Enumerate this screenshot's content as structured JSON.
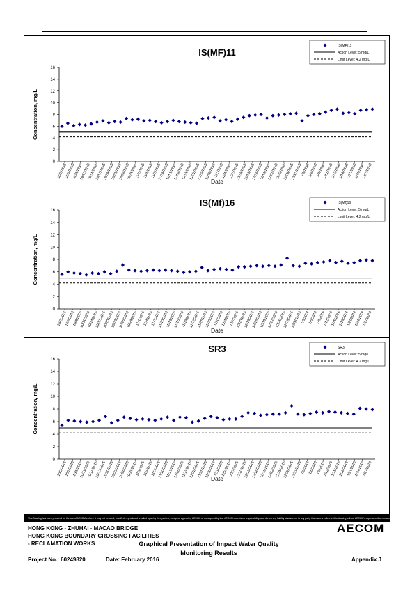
{
  "chart_data": [
    {
      "type": "scatter",
      "title": "IS(MF)11",
      "xlabel": "Date",
      "ylabel": "Concentration, mg/L",
      "ylim": [
        0,
        16
      ],
      "yticks": [
        0,
        2,
        4,
        6,
        8,
        10,
        12,
        14,
        16
      ],
      "xtick_labels": [
        "10/2/2015",
        "10/5/2015",
        "10/8/2015",
        "10/11/2015",
        "10/14/2015",
        "10/17/2015",
        "10/20/2015",
        "10/23/2015",
        "10/26/2015",
        "10/29/2015",
        "11/1/2015",
        "11/4/2015",
        "11/7/2015",
        "11/10/2015",
        "11/13/2015",
        "11/16/2015",
        "11/19/2015",
        "11/22/2015",
        "11/25/2015",
        "11/28/2015",
        "12/1/2015",
        "12/4/2015",
        "12/7/2015",
        "12/10/2015",
        "12/13/2015",
        "12/16/2015",
        "12/19/2015",
        "12/22/2015",
        "12/25/2015",
        "12/28/2015",
        "12/31/2015",
        "1/3/2016",
        "1/6/2016",
        "1/9/2016",
        "1/12/2016",
        "1/15/2016",
        "1/18/2016",
        "1/21/2016",
        "1/24/2016",
        "1/27/2016"
      ],
      "legend": [
        {
          "label": "IS(MF)11",
          "kind": "marker"
        },
        {
          "label": "Action Level: 5 mg/L",
          "kind": "solid"
        },
        {
          "label": "Limit Level: 4.2 mg/L",
          "kind": "dashed"
        }
      ],
      "action_level": 5,
      "limit_level": 4.2,
      "series": [
        {
          "name": "IS(MF)11",
          "color": "#000080",
          "values": [
            6.0,
            6.5,
            6.1,
            6.3,
            6.2,
            6.4,
            6.7,
            6.9,
            6.6,
            6.8,
            6.7,
            7.3,
            7.1,
            7.2,
            6.9,
            7.0,
            6.8,
            6.6,
            6.8,
            7.0,
            6.8,
            6.7,
            6.6,
            6.5,
            7.3,
            7.4,
            7.5,
            6.9,
            7.1,
            6.8,
            7.2,
            7.5,
            7.8,
            7.9,
            8.0,
            7.4,
            7.8,
            7.9,
            8.0,
            8.1,
            8.2,
            6.9,
            7.8,
            8.0,
            8.1,
            8.4,
            8.7,
            8.9,
            8.2,
            8.3,
            8.1,
            8.7,
            8.8,
            8.9
          ]
        }
      ]
    },
    {
      "type": "scatter",
      "title": "IS(Mf)16",
      "xlabel": "Date",
      "ylabel": "Concentration, mg/L",
      "ylim": [
        0,
        16
      ],
      "yticks": [
        0,
        2,
        4,
        6,
        8,
        10,
        12,
        14,
        16
      ],
      "xtick_labels": [
        "10/2/2015",
        "10/5/2015",
        "10/8/2015",
        "10/11/2015",
        "10/14/2015",
        "10/17/2015",
        "10/20/2015",
        "10/23/2015",
        "10/26/2015",
        "10/29/2015",
        "11/1/2015",
        "11/4/2015",
        "11/7/2015",
        "11/10/2015",
        "11/13/2015",
        "11/16/2015",
        "11/19/2015",
        "11/22/2015",
        "11/25/2015",
        "11/28/2015",
        "12/1/2015",
        "12/4/2015",
        "12/7/2015",
        "12/10/2015",
        "12/13/2015",
        "12/16/2015",
        "12/19/2015",
        "12/22/2015",
        "12/25/2015",
        "12/28/2015",
        "12/31/2015",
        "1/3/2016",
        "1/6/2016",
        "1/9/2016",
        "1/12/2016",
        "1/15/2016",
        "1/18/2016",
        "1/21/2016",
        "1/24/2016",
        "1/27/2016"
      ],
      "legend": [
        {
          "label": "IS(Mf)16",
          "kind": "marker"
        },
        {
          "label": "Action Level: 5 mg/L",
          "kind": "solid"
        },
        {
          "label": "Limit Level: 4.2 mg/L",
          "kind": "dashed"
        }
      ],
      "action_level": 5,
      "limit_level": 4.2,
      "series": [
        {
          "name": "IS(Mf)16",
          "color": "#000080",
          "values": [
            5.6,
            6.0,
            5.8,
            5.7,
            5.5,
            5.8,
            5.7,
            6.0,
            5.7,
            6.1,
            7.1,
            6.3,
            6.2,
            6.1,
            6.2,
            6.3,
            6.2,
            6.3,
            6.2,
            6.1,
            5.9,
            6.0,
            6.1,
            6.7,
            6.2,
            6.4,
            6.5,
            6.4,
            6.3,
            6.8,
            6.8,
            6.9,
            7.0,
            6.9,
            7.0,
            6.9,
            7.1,
            8.2,
            7.0,
            6.9,
            7.4,
            7.3,
            7.5,
            7.6,
            7.8,
            7.5,
            7.7,
            7.4,
            7.5,
            7.8,
            7.9,
            7.8
          ]
        }
      ]
    },
    {
      "type": "scatter",
      "title": "SR3",
      "xlabel": "Date",
      "ylabel": "Concentration, mg/L",
      "ylim": [
        0,
        16
      ],
      "yticks": [
        0,
        2,
        4,
        6,
        8,
        10,
        12,
        14,
        16
      ],
      "xtick_labels": [
        "10/2/2015",
        "10/5/2015",
        "10/8/2015",
        "10/11/2015",
        "10/14/2015",
        "10/17/2015",
        "10/20/2015",
        "10/23/2015",
        "10/26/2015",
        "10/29/2015",
        "11/1/2015",
        "11/4/2015",
        "11/7/2015",
        "11/10/2015",
        "11/13/2015",
        "11/16/2015",
        "11/19/2015",
        "11/22/2015",
        "11/25/2015",
        "11/28/2015",
        "12/1/2015",
        "12/4/2015",
        "12/7/2015",
        "12/10/2015",
        "12/13/2015",
        "12/16/2015",
        "12/19/2015",
        "12/22/2015",
        "12/25/2015",
        "12/28/2015",
        "12/31/2015",
        "1/3/2016",
        "1/6/2016",
        "1/9/2016",
        "1/12/2016",
        "1/15/2016",
        "1/18/2016",
        "1/21/2016",
        "1/24/2016",
        "1/27/2016"
      ],
      "legend": [
        {
          "label": "SR3",
          "kind": "marker"
        },
        {
          "label": "Action Level: 5 mg/L",
          "kind": "solid"
        },
        {
          "label": "Limit Level: 4.2 mg/L",
          "kind": "dashed"
        }
      ],
      "action_level": 5,
      "limit_level": 4.2,
      "series": [
        {
          "name": "SR3",
          "color": "#000080",
          "values": [
            5.4,
            6.2,
            6.1,
            6.0,
            5.9,
            6.0,
            6.2,
            6.8,
            5.8,
            6.2,
            6.7,
            6.5,
            6.3,
            6.4,
            6.3,
            6.2,
            6.4,
            6.7,
            6.2,
            6.7,
            6.6,
            5.9,
            6.1,
            6.5,
            6.8,
            6.6,
            6.3,
            6.4,
            6.4,
            6.8,
            7.4,
            7.3,
            7.0,
            7.1,
            7.2,
            7.2,
            7.4,
            8.5,
            7.2,
            7.1,
            7.3,
            7.5,
            7.4,
            7.6,
            7.5,
            7.4,
            7.3,
            7.2,
            8.1,
            8.0,
            7.9
          ]
        }
      ]
    }
  ],
  "footer": {
    "disclaimer": "This Drawing has been prepared for the use of AECOM's client. It may not be used, modified, reproduced or relied upon by third parties, except as agreed by AECOM or as required by law. AECOM accepts no responsibility, and denies any liability whatsoever, to any party that uses or relies on this drawing without AECOM's express written consent.",
    "project_line1": "HONG KONG - ZHUHAI - MACAO BRIDGE",
    "project_line2": "HONG KONG BOUNDARY CROSSING FACILITIES",
    "project_line3": "- RECLAMATION WORKS",
    "title_line1": "Graphical Presentation of Impact Water Quality",
    "title_line2": "Monitoring Results",
    "logo": "AECOM",
    "project_no": "Project No.: 60249820",
    "date": "Date: February 2016",
    "appendix": "Appendix J"
  }
}
